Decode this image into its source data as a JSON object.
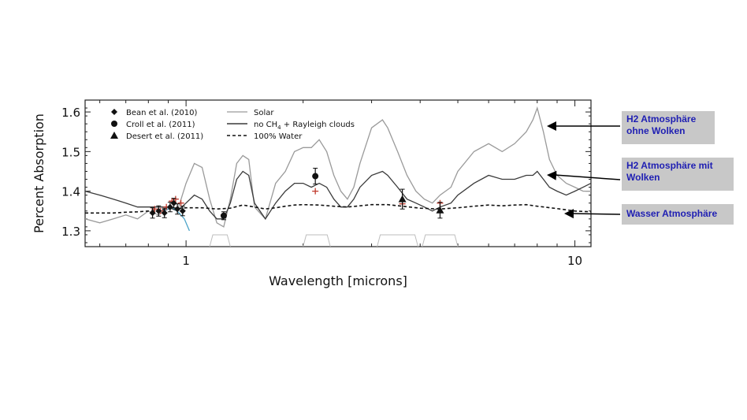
{
  "chart_data": {
    "type": "line",
    "xlabel": "Wavelength [microns]",
    "ylabel": "Percent Absorption",
    "xscale": "log",
    "xlim": [
      0.55,
      11
    ],
    "ylim": [
      1.26,
      1.63
    ],
    "x_tick_labels": [
      "1",
      "10"
    ],
    "y_tick_labels": [
      "1.3",
      "1.4",
      "1.5",
      "1.6"
    ],
    "x_ticks": [
      1,
      10
    ],
    "y_ticks": [
      1.3,
      1.4,
      1.5,
      1.6
    ],
    "legend_position": "top-left",
    "legend_markers": [
      {
        "label": "Bean et al. (2010)",
        "marker": "diamond"
      },
      {
        "label": "Croll et al. (2011)",
        "marker": "circle"
      },
      {
        "label": "Desert et al. (2011)",
        "marker": "triangle"
      }
    ],
    "legend_lines_1": "Solar",
    "legend_lines_2": "no CH",
    "legend_lines_2_sub": "4",
    "legend_lines_2_rest": " + Rayleigh clouds",
    "legend_lines_3": "100% Water",
    "series": [
      {
        "name": "Solar",
        "color": "#9a9a9a",
        "x": [
          0.55,
          0.6,
          0.65,
          0.7,
          0.75,
          0.8,
          0.85,
          0.9,
          0.95,
          1.0,
          1.05,
          1.1,
          1.15,
          1.2,
          1.25,
          1.3,
          1.35,
          1.4,
          1.45,
          1.5,
          1.6,
          1.7,
          1.8,
          1.9,
          2.0,
          2.1,
          2.2,
          2.3,
          2.4,
          2.5,
          2.6,
          2.7,
          2.8,
          3.0,
          3.2,
          3.3,
          3.5,
          3.7,
          3.9,
          4.1,
          4.3,
          4.5,
          4.8,
          5.0,
          5.5,
          6.0,
          6.5,
          7.0,
          7.5,
          7.8,
          8.0,
          8.3,
          8.6,
          9.0,
          9.5,
          10.0,
          10.5,
          11.0
        ],
        "y": [
          1.33,
          1.32,
          1.33,
          1.34,
          1.33,
          1.35,
          1.34,
          1.36,
          1.35,
          1.42,
          1.47,
          1.46,
          1.38,
          1.32,
          1.31,
          1.38,
          1.47,
          1.49,
          1.48,
          1.36,
          1.33,
          1.42,
          1.45,
          1.5,
          1.51,
          1.51,
          1.53,
          1.5,
          1.44,
          1.4,
          1.38,
          1.41,
          1.47,
          1.56,
          1.58,
          1.56,
          1.5,
          1.44,
          1.4,
          1.38,
          1.37,
          1.39,
          1.41,
          1.45,
          1.5,
          1.52,
          1.5,
          1.52,
          1.55,
          1.58,
          1.61,
          1.55,
          1.48,
          1.44,
          1.42,
          1.41,
          1.4,
          1.4
        ]
      },
      {
        "name": "no CH4 + Rayleigh clouds",
        "color": "#3a3a3a",
        "x": [
          0.55,
          0.6,
          0.65,
          0.7,
          0.75,
          0.8,
          0.85,
          0.9,
          0.95,
          1.0,
          1.05,
          1.1,
          1.15,
          1.2,
          1.25,
          1.3,
          1.35,
          1.4,
          1.45,
          1.5,
          1.6,
          1.7,
          1.8,
          1.9,
          2.0,
          2.1,
          2.2,
          2.3,
          2.4,
          2.5,
          2.6,
          2.7,
          2.8,
          3.0,
          3.2,
          3.3,
          3.5,
          3.7,
          3.9,
          4.1,
          4.3,
          4.5,
          4.8,
          5.0,
          5.5,
          6.0,
          6.5,
          7.0,
          7.5,
          7.8,
          8.0,
          8.3,
          8.6,
          9.0,
          9.5,
          10.0,
          10.5,
          11.0
        ],
        "y": [
          1.4,
          1.39,
          1.38,
          1.37,
          1.36,
          1.36,
          1.36,
          1.36,
          1.35,
          1.37,
          1.39,
          1.38,
          1.35,
          1.33,
          1.33,
          1.37,
          1.43,
          1.45,
          1.44,
          1.37,
          1.33,
          1.37,
          1.4,
          1.42,
          1.42,
          1.41,
          1.42,
          1.41,
          1.38,
          1.36,
          1.36,
          1.38,
          1.41,
          1.44,
          1.45,
          1.44,
          1.41,
          1.38,
          1.37,
          1.36,
          1.35,
          1.36,
          1.37,
          1.39,
          1.42,
          1.44,
          1.43,
          1.43,
          1.44,
          1.44,
          1.45,
          1.43,
          1.41,
          1.4,
          1.39,
          1.4,
          1.41,
          1.42
        ]
      },
      {
        "name": "100% Water",
        "color": "#111111",
        "dashed": true,
        "x": [
          0.55,
          0.6,
          0.65,
          0.7,
          0.75,
          0.8,
          0.85,
          0.9,
          0.95,
          1.0,
          1.1,
          1.2,
          1.3,
          1.4,
          1.5,
          1.6,
          1.7,
          1.8,
          1.9,
          2.0,
          2.2,
          2.4,
          2.6,
          2.8,
          3.0,
          3.3,
          3.6,
          4.0,
          4.5,
          5.0,
          5.5,
          6.0,
          6.5,
          7.0,
          7.5,
          8.0,
          9.0,
          10.0,
          11.0
        ],
        "y": [
          1.345,
          1.345,
          1.345,
          1.347,
          1.348,
          1.35,
          1.352,
          1.355,
          1.356,
          1.358,
          1.358,
          1.355,
          1.357,
          1.365,
          1.36,
          1.355,
          1.358,
          1.362,
          1.365,
          1.366,
          1.365,
          1.362,
          1.36,
          1.363,
          1.366,
          1.366,
          1.362,
          1.357,
          1.355,
          1.358,
          1.362,
          1.365,
          1.363,
          1.365,
          1.366,
          1.362,
          1.356,
          1.35,
          1.348
        ]
      }
    ],
    "observations": [
      {
        "group": "Bean et al. (2010)",
        "marker": "diamond",
        "points": [
          {
            "x": 0.82,
            "y": 1.345,
            "err": 0.013
          },
          {
            "x": 0.85,
            "y": 1.35,
            "err": 0.013
          },
          {
            "x": 0.88,
            "y": 1.345,
            "err": 0.012
          },
          {
            "x": 0.91,
            "y": 1.36,
            "err": 0.012
          },
          {
            "x": 0.93,
            "y": 1.37,
            "err": 0.012
          },
          {
            "x": 0.95,
            "y": 1.355,
            "err": 0.013
          },
          {
            "x": 0.98,
            "y": 1.35,
            "err": 0.012
          }
        ]
      },
      {
        "group": "Croll et al. (2011)",
        "marker": "circle",
        "points": [
          {
            "x": 1.25,
            "y": 1.338,
            "err": 0.01
          },
          {
            "x": 2.15,
            "y": 1.438,
            "err": 0.02
          }
        ]
      },
      {
        "group": "Desert et al. (2011)",
        "marker": "triangle",
        "points": [
          {
            "x": 3.6,
            "y": 1.38,
            "err": 0.025
          },
          {
            "x": 4.5,
            "y": 1.352,
            "err": 0.02
          }
        ]
      }
    ]
  },
  "annotations": [
    {
      "id": "h2-cloudless",
      "text_line1": "H2 Atmosphäre",
      "text_line2": "ohne Wolken"
    },
    {
      "id": "h2-clouds",
      "text_line1": "H2 Atmosphäre mit",
      "text_line2": "Wolken"
    },
    {
      "id": "water",
      "text_line1": "Wasser Atmosphäre",
      "text_line2": ""
    }
  ],
  "colors": {
    "annotation_bg": "#c8c8c8",
    "annotation_text": "#1f1fb3",
    "obs_red": "#c0392b",
    "bean_model": "#4aa3c8"
  }
}
